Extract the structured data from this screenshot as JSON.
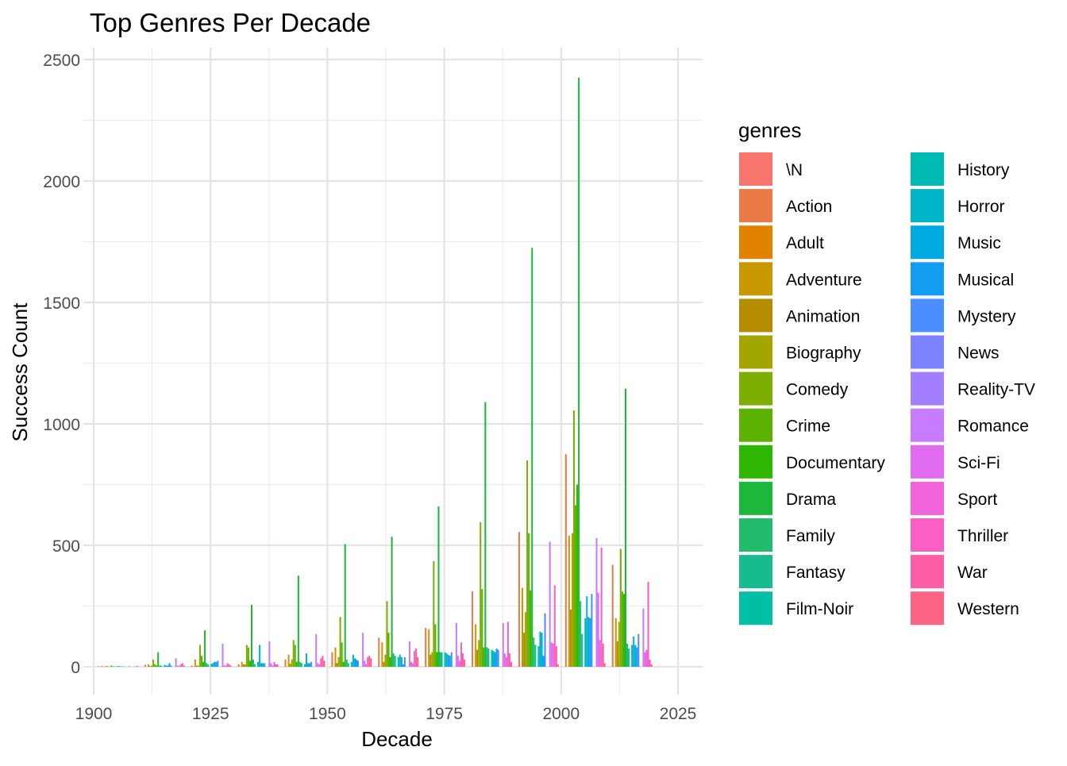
{
  "chart_data": {
    "type": "bar",
    "title": "Top Genres Per Decade",
    "xlabel": "Decade",
    "ylabel": "Success Count",
    "legend_title": "genres",
    "legend_position": "right",
    "grid": true,
    "xlim": [
      1900,
      2025
    ],
    "ylim": [
      0,
      2500
    ],
    "x_ticks": [
      "1900",
      "1925",
      "1950",
      "1975",
      "2000",
      "2025"
    ],
    "y_ticks": [
      "0",
      "500",
      "1000",
      "1500",
      "2000",
      "2500"
    ],
    "decades": [
      1900,
      1910,
      1920,
      1930,
      1940,
      1950,
      1960,
      1970,
      1980,
      1990,
      2000,
      2010
    ],
    "series": [
      {
        "name": "\\N",
        "color": "#F8766D",
        "values": [
          0,
          0,
          0,
          0,
          0,
          0,
          0,
          0,
          0,
          0,
          0,
          0
        ]
      },
      {
        "name": "Action",
        "color": "#EA7B49",
        "values": [
          2,
          8,
          5,
          10,
          30,
          60,
          120,
          160,
          310,
          555,
          875,
          420
        ]
      },
      {
        "name": "Adult",
        "color": "#E08200",
        "values": [
          0,
          0,
          0,
          0,
          0,
          0,
          0,
          0,
          0,
          0,
          0,
          0
        ]
      },
      {
        "name": "Adventure",
        "color": "#C99800",
        "values": [
          3,
          10,
          30,
          20,
          50,
          80,
          100,
          155,
          175,
          325,
          540,
          200
        ]
      },
      {
        "name": "Animation",
        "color": "#B48C00",
        "values": [
          0,
          2,
          5,
          10,
          12,
          15,
          20,
          50,
          70,
          140,
          235,
          105
        ]
      },
      {
        "name": "Biography",
        "color": "#A3A500",
        "values": [
          1,
          5,
          5,
          10,
          30,
          40,
          50,
          60,
          110,
          225,
          550,
          185
        ]
      },
      {
        "name": "Comedy",
        "color": "#7CAE00",
        "values": [
          3,
          30,
          90,
          90,
          110,
          205,
          270,
          435,
          595,
          850,
          1055,
          485
        ]
      },
      {
        "name": "Crime",
        "color": "#5BB300",
        "values": [
          1,
          10,
          45,
          80,
          90,
          100,
          140,
          175,
          320,
          550,
          665,
          310
        ]
      },
      {
        "name": "Documentary",
        "color": "#2FB600",
        "values": [
          0,
          5,
          20,
          25,
          20,
          20,
          40,
          60,
          80,
          315,
          750,
          300
        ]
      },
      {
        "name": "Drama",
        "color": "#1DB83B",
        "values": [
          5,
          60,
          150,
          255,
          375,
          505,
          535,
          660,
          1090,
          1725,
          2425,
          1145
        ]
      },
      {
        "name": "Family",
        "color": "#22BB6B",
        "values": [
          1,
          5,
          15,
          30,
          20,
          30,
          55,
          60,
          80,
          120,
          270,
          95
        ]
      },
      {
        "name": "Fantasy",
        "color": "#17BC8E",
        "values": [
          1,
          5,
          10,
          10,
          15,
          15,
          45,
          60,
          75,
          90,
          135,
          75
        ]
      },
      {
        "name": "Film-Noir",
        "color": "#00BFA4",
        "values": [
          0,
          0,
          0,
          0,
          0,
          0,
          0,
          0,
          0,
          0,
          0,
          0
        ]
      },
      {
        "name": "History",
        "color": "#00BBB4",
        "values": [
          3,
          8,
          12,
          20,
          10,
          20,
          40,
          60,
          70,
          85,
          200,
          90
        ]
      },
      {
        "name": "Horror",
        "color": "#00B5C8",
        "values": [
          2,
          5,
          15,
          90,
          55,
          50,
          50,
          55,
          65,
          145,
          290,
          125
        ]
      },
      {
        "name": "Music",
        "color": "#00A9DF",
        "values": [
          1,
          5,
          20,
          15,
          15,
          35,
          40,
          50,
          60,
          140,
          205,
          90
        ]
      },
      {
        "name": "Musical",
        "color": "#119DF1",
        "values": [
          1,
          15,
          20,
          15,
          15,
          30,
          10,
          45,
          75,
          45,
          200,
          80
        ]
      },
      {
        "name": "Mystery",
        "color": "#4A8EFF",
        "values": [
          0,
          5,
          25,
          15,
          20,
          25,
          40,
          60,
          70,
          220,
          300,
          135
        ]
      },
      {
        "name": "News",
        "color": "#7C82FF",
        "values": [
          0,
          0,
          0,
          0,
          0,
          0,
          0,
          0,
          0,
          0,
          0,
          0
        ]
      },
      {
        "name": "Reality-TV",
        "color": "#A37FFF",
        "values": [
          0,
          0,
          0,
          0,
          0,
          0,
          0,
          0,
          0,
          0,
          0,
          0
        ]
      },
      {
        "name": "Romance",
        "color": "#C77CFF",
        "values": [
          2,
          35,
          95,
          105,
          135,
          140,
          105,
          180,
          180,
          515,
          530,
          240
        ]
      },
      {
        "name": "Sci-Fi",
        "color": "#E06BF0",
        "values": [
          0,
          5,
          5,
          15,
          15,
          25,
          20,
          45,
          55,
          100,
          305,
          60
        ]
      },
      {
        "name": "Sport",
        "color": "#F064DD",
        "values": [
          0,
          3,
          5,
          5,
          10,
          10,
          15,
          25,
          40,
          95,
          110,
          70
        ]
      },
      {
        "name": "Thriller",
        "color": "#FA5FC6",
        "values": [
          0,
          10,
          15,
          20,
          35,
          40,
          65,
          100,
          185,
          335,
          490,
          350
        ]
      },
      {
        "name": "War",
        "color": "#FF5DA6",
        "values": [
          1,
          15,
          10,
          10,
          45,
          45,
          75,
          55,
          55,
          85,
          95,
          30
        ]
      },
      {
        "name": "Western",
        "color": "#FF6385",
        "values": [
          3,
          5,
          5,
          10,
          25,
          35,
          40,
          30,
          20,
          10,
          15,
          10
        ]
      }
    ]
  }
}
